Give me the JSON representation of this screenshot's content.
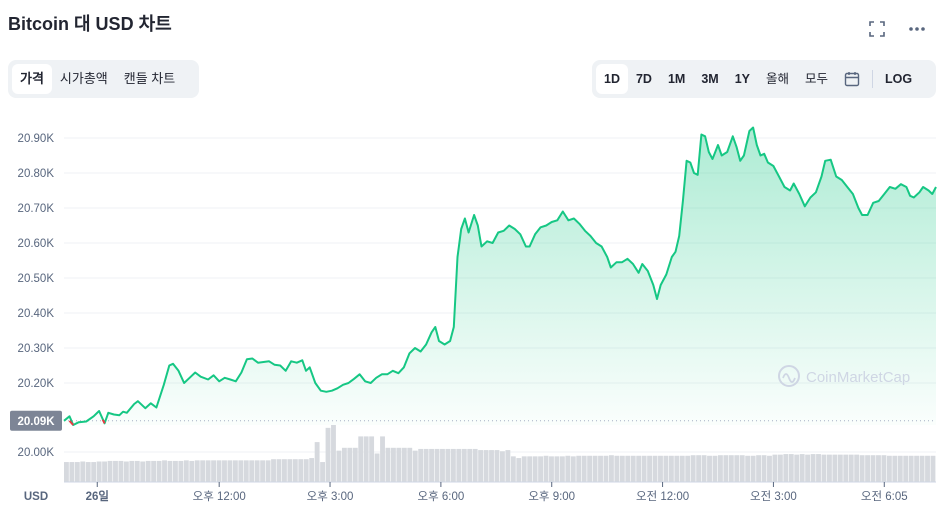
{
  "header": {
    "title": "Bitcoin 대 USD 차트",
    "fullscreen_icon": "fullscreen-icon",
    "more_icon": "more-icon"
  },
  "view_tabs": [
    {
      "label": "가격",
      "active": true
    },
    {
      "label": "시가총액",
      "active": false
    },
    {
      "label": "캔들 차트",
      "active": false
    }
  ],
  "range_tabs": [
    {
      "label": "1D",
      "active": true
    },
    {
      "label": "7D",
      "active": false
    },
    {
      "label": "1M",
      "active": false
    },
    {
      "label": "3M",
      "active": false
    },
    {
      "label": "1Y",
      "active": false
    },
    {
      "label": "올해",
      "active": false
    },
    {
      "label": "모두",
      "active": false
    }
  ],
  "calendar_icon": "calendar-icon",
  "log_label": "LOG",
  "watermark": "CoinMarketCap",
  "colors": {
    "line": "#16c784",
    "down": "#ea3943",
    "axis_text": "#58667e",
    "grid": "#eff2f5"
  },
  "chart_data": {
    "type": "area",
    "currency_label": "USD",
    "current_price_label": "20.09K",
    "ylim": [
      19980,
      20935
    ],
    "y_ticks": [
      {
        "value": 20000,
        "label": "20.00K"
      },
      {
        "value": 20200,
        "label": "20.20K"
      },
      {
        "value": 20300,
        "label": "20.30K"
      },
      {
        "value": 20400,
        "label": "20.40K"
      },
      {
        "value": 20500,
        "label": "20.50K"
      },
      {
        "value": 20600,
        "label": "20.60K"
      },
      {
        "value": 20700,
        "label": "20.70K"
      },
      {
        "value": 20800,
        "label": "20.80K"
      },
      {
        "value": 20900,
        "label": "20.90K"
      }
    ],
    "x_ticks": [
      {
        "hour": 0.3,
        "label": "26일"
      },
      {
        "hour": 3.6,
        "label": "오후 12:00"
      },
      {
        "hour": 6.6,
        "label": "오후 3:00"
      },
      {
        "hour": 9.6,
        "label": "오후 6:00"
      },
      {
        "hour": 12.6,
        "label": "오후 9:00"
      },
      {
        "hour": 15.6,
        "label": "오전 12:00"
      },
      {
        "hour": 18.6,
        "label": "오전 3:00"
      },
      {
        "hour": 21.6,
        "label": "오전 6:05"
      }
    ],
    "x_range": [
      -0.6,
      23.0
    ],
    "series": [
      {
        "name": "",
        "points": [
          [
            -0.6,
            20092
          ],
          [
            -0.45,
            20105
          ],
          [
            -0.35,
            20080
          ],
          [
            -0.2,
            20088
          ],
          [
            0.0,
            20090
          ],
          [
            0.2,
            20105
          ],
          [
            0.35,
            20120
          ],
          [
            0.5,
            20085
          ],
          [
            0.6,
            20115
          ],
          [
            0.75,
            20110
          ],
          [
            0.9,
            20108
          ],
          [
            1.0,
            20118
          ],
          [
            1.1,
            20115
          ],
          [
            1.3,
            20140
          ],
          [
            1.4,
            20148
          ],
          [
            1.6,
            20128
          ],
          [
            1.75,
            20142
          ],
          [
            1.9,
            20130
          ],
          [
            2.1,
            20195
          ],
          [
            2.25,
            20250
          ],
          [
            2.35,
            20255
          ],
          [
            2.5,
            20235
          ],
          [
            2.65,
            20200
          ],
          [
            2.8,
            20215
          ],
          [
            2.95,
            20230
          ],
          [
            3.1,
            20218
          ],
          [
            3.3,
            20210
          ],
          [
            3.45,
            20222
          ],
          [
            3.6,
            20205
          ],
          [
            3.75,
            20215
          ],
          [
            3.9,
            20210
          ],
          [
            4.05,
            20205
          ],
          [
            4.2,
            20230
          ],
          [
            4.35,
            20268
          ],
          [
            4.5,
            20270
          ],
          [
            4.65,
            20258
          ],
          [
            4.8,
            20260
          ],
          [
            4.95,
            20262
          ],
          [
            5.1,
            20252
          ],
          [
            5.25,
            20250
          ],
          [
            5.4,
            20235
          ],
          [
            5.55,
            20262
          ],
          [
            5.7,
            20258
          ],
          [
            5.85,
            20265
          ],
          [
            5.95,
            20235
          ],
          [
            6.05,
            20245
          ],
          [
            6.2,
            20200
          ],
          [
            6.35,
            20178
          ],
          [
            6.5,
            20175
          ],
          [
            6.65,
            20178
          ],
          [
            6.8,
            20185
          ],
          [
            6.95,
            20195
          ],
          [
            7.1,
            20200
          ],
          [
            7.25,
            20212
          ],
          [
            7.4,
            20225
          ],
          [
            7.55,
            20205
          ],
          [
            7.7,
            20200
          ],
          [
            7.85,
            20215
          ],
          [
            8.0,
            20225
          ],
          [
            8.15,
            20225
          ],
          [
            8.3,
            20235
          ],
          [
            8.45,
            20228
          ],
          [
            8.6,
            20245
          ],
          [
            8.75,
            20285
          ],
          [
            8.9,
            20300
          ],
          [
            9.05,
            20290
          ],
          [
            9.2,
            20310
          ],
          [
            9.35,
            20345
          ],
          [
            9.45,
            20360
          ],
          [
            9.55,
            20320
          ],
          [
            9.7,
            20310
          ],
          [
            9.85,
            20320
          ],
          [
            9.95,
            20360
          ],
          [
            10.05,
            20560
          ],
          [
            10.15,
            20640
          ],
          [
            10.25,
            20670
          ],
          [
            10.35,
            20630
          ],
          [
            10.5,
            20680
          ],
          [
            10.6,
            20650
          ],
          [
            10.7,
            20590
          ],
          [
            10.85,
            20605
          ],
          [
            11.0,
            20600
          ],
          [
            11.15,
            20630
          ],
          [
            11.3,
            20635
          ],
          [
            11.45,
            20650
          ],
          [
            11.6,
            20640
          ],
          [
            11.75,
            20625
          ],
          [
            11.9,
            20590
          ],
          [
            12.0,
            20590
          ],
          [
            12.15,
            20625
          ],
          [
            12.3,
            20645
          ],
          [
            12.45,
            20650
          ],
          [
            12.6,
            20660
          ],
          [
            12.75,
            20665
          ],
          [
            12.9,
            20690
          ],
          [
            13.05,
            20665
          ],
          [
            13.2,
            20670
          ],
          [
            13.35,
            20655
          ],
          [
            13.5,
            20635
          ],
          [
            13.65,
            20620
          ],
          [
            13.8,
            20600
          ],
          [
            13.95,
            20590
          ],
          [
            14.1,
            20560
          ],
          [
            14.2,
            20530
          ],
          [
            14.35,
            20545
          ],
          [
            14.5,
            20545
          ],
          [
            14.65,
            20555
          ],
          [
            14.8,
            20540
          ],
          [
            14.95,
            20515
          ],
          [
            15.05,
            20540
          ],
          [
            15.2,
            20520
          ],
          [
            15.35,
            20480
          ],
          [
            15.45,
            20440
          ],
          [
            15.55,
            20480
          ],
          [
            15.7,
            20510
          ],
          [
            15.85,
            20560
          ],
          [
            15.95,
            20575
          ],
          [
            16.05,
            20620
          ],
          [
            16.15,
            20720
          ],
          [
            16.25,
            20835
          ],
          [
            16.35,
            20830
          ],
          [
            16.45,
            20800
          ],
          [
            16.55,
            20795
          ],
          [
            16.65,
            20910
          ],
          [
            16.75,
            20905
          ],
          [
            16.85,
            20860
          ],
          [
            16.95,
            20840
          ],
          [
            17.1,
            20880
          ],
          [
            17.2,
            20850
          ],
          [
            17.35,
            20860
          ],
          [
            17.5,
            20905
          ],
          [
            17.6,
            20875
          ],
          [
            17.7,
            20835
          ],
          [
            17.8,
            20850
          ],
          [
            17.95,
            20920
          ],
          [
            18.05,
            20930
          ],
          [
            18.15,
            20880
          ],
          [
            18.25,
            20850
          ],
          [
            18.35,
            20855
          ],
          [
            18.45,
            20830
          ],
          [
            18.6,
            20820
          ],
          [
            18.75,
            20790
          ],
          [
            18.9,
            20760
          ],
          [
            19.05,
            20750
          ],
          [
            19.15,
            20770
          ],
          [
            19.3,
            20740
          ],
          [
            19.45,
            20705
          ],
          [
            19.6,
            20730
          ],
          [
            19.75,
            20745
          ],
          [
            19.9,
            20790
          ],
          [
            20.0,
            20835
          ],
          [
            20.15,
            20838
          ],
          [
            20.3,
            20790
          ],
          [
            20.45,
            20780
          ],
          [
            20.6,
            20760
          ],
          [
            20.75,
            20740
          ],
          [
            20.9,
            20700
          ],
          [
            21.0,
            20680
          ],
          [
            21.15,
            20680
          ],
          [
            21.3,
            20715
          ],
          [
            21.45,
            20720
          ],
          [
            21.6,
            20740
          ],
          [
            21.75,
            20760
          ],
          [
            21.9,
            20755
          ],
          [
            22.05,
            20768
          ],
          [
            22.2,
            20760
          ],
          [
            22.3,
            20735
          ],
          [
            22.4,
            20730
          ],
          [
            22.55,
            20745
          ],
          [
            22.65,
            20760
          ],
          [
            22.8,
            20750
          ],
          [
            22.9,
            20740
          ],
          [
            23.0,
            20760
          ]
        ]
      }
    ],
    "volume_relative": [
      0.35,
      0.35,
      0.35,
      0.36,
      0.35,
      0.35,
      0.36,
      0.36,
      0.37,
      0.37,
      0.37,
      0.36,
      0.37,
      0.37,
      0.36,
      0.37,
      0.37,
      0.37,
      0.38,
      0.37,
      0.37,
      0.37,
      0.38,
      0.37,
      0.38,
      0.38,
      0.38,
      0.38,
      0.38,
      0.38,
      0.38,
      0.38,
      0.38,
      0.38,
      0.38,
      0.38,
      0.38,
      0.38,
      0.4,
      0.4,
      0.4,
      0.4,
      0.4,
      0.4,
      0.4,
      0.42,
      0.7,
      0.35,
      0.95,
      1.0,
      0.55,
      0.6,
      0.6,
      0.6,
      0.8,
      0.8,
      0.8,
      0.5,
      0.8,
      0.6,
      0.6,
      0.6,
      0.6,
      0.6,
      0.55,
      0.58,
      0.58,
      0.58,
      0.58,
      0.58,
      0.58,
      0.58,
      0.58,
      0.58,
      0.58,
      0.58,
      0.56,
      0.56,
      0.56,
      0.56,
      0.54,
      0.56,
      0.45,
      0.42,
      0.45,
      0.45,
      0.45,
      0.45,
      0.46,
      0.45,
      0.45,
      0.45,
      0.46,
      0.45,
      0.46,
      0.46,
      0.46,
      0.46,
      0.46,
      0.46,
      0.47,
      0.46,
      0.46,
      0.46,
      0.46,
      0.46,
      0.46,
      0.46,
      0.46,
      0.46,
      0.46,
      0.46,
      0.46,
      0.46,
      0.46,
      0.47,
      0.47,
      0.47,
      0.46,
      0.46,
      0.47,
      0.47,
      0.47,
      0.47,
      0.47,
      0.46,
      0.46,
      0.47,
      0.47,
      0.46,
      0.48,
      0.48,
      0.49,
      0.49,
      0.48,
      0.49,
      0.48,
      0.49,
      0.49,
      0.48,
      0.48,
      0.48,
      0.48,
      0.48,
      0.48,
      0.48,
      0.47,
      0.47,
      0.47,
      0.47,
      0.47,
      0.46,
      0.46,
      0.46,
      0.46,
      0.46,
      0.46,
      0.46,
      0.46,
      0.46
    ]
  }
}
